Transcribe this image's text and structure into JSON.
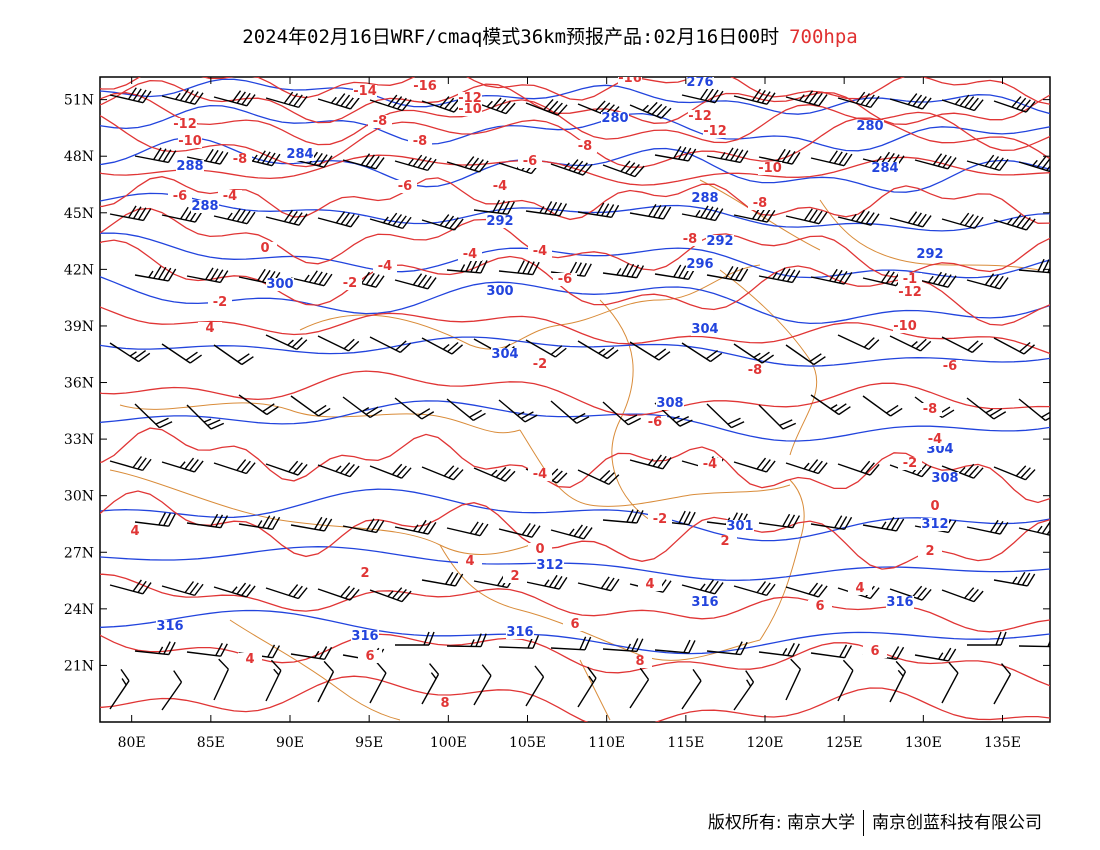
{
  "title": {
    "main": "2024年02月16日WRF/cmaq模式36km预报产品:02月16日00时",
    "level": "700hpa"
  },
  "colors": {
    "height": "#2244dd",
    "temp": "#e03535",
    "border": "#d98c3a",
    "wind": "#000000"
  },
  "axes": {
    "lat_ticks": [
      "51N",
      "48N",
      "45N",
      "42N",
      "39N",
      "36N",
      "33N",
      "30N",
      "27N",
      "24N",
      "21N"
    ],
    "lon_ticks": [
      "80E",
      "85E",
      "90E",
      "95E",
      "100E",
      "105E",
      "110E",
      "115E",
      "120E",
      "125E",
      "130E",
      "135E"
    ]
  },
  "height_contours": [
    {
      "value": 276,
      "label": "276"
    },
    {
      "value": 280,
      "label": "280"
    },
    {
      "value": 284,
      "label": "284"
    },
    {
      "value": 288,
      "label": "288"
    },
    {
      "value": 292,
      "label": "292"
    },
    {
      "value": 296,
      "label": "296"
    },
    {
      "value": 300,
      "label": "300"
    },
    {
      "value": 304,
      "label": "304"
    },
    {
      "value": 308,
      "label": "308"
    },
    {
      "value": 312,
      "label": "312"
    },
    {
      "value": 316,
      "label": "316"
    }
  ],
  "temp_contours": [
    "-16",
    "-14",
    "-12",
    "-10",
    "-8",
    "-6",
    "-4",
    "-2",
    "0",
    "2",
    "4",
    "6",
    "8"
  ],
  "footer": {
    "left": "版权所有: 南京大学",
    "right": "南京创蓝科技有限公司"
  }
}
